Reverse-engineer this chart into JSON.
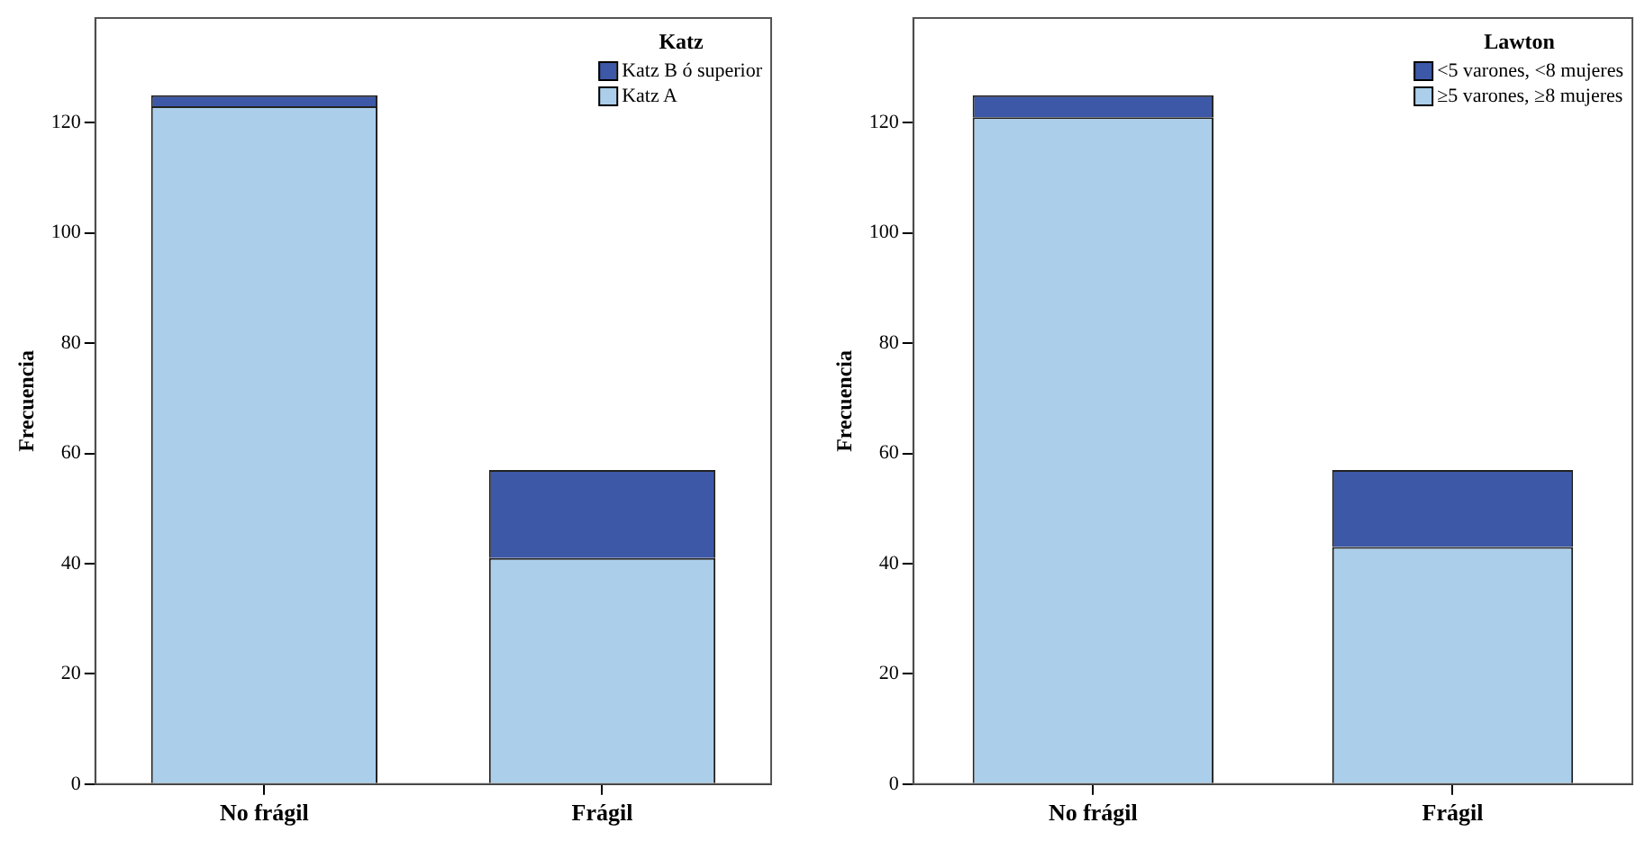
{
  "chart_data": [
    {
      "type": "bar",
      "stacked": true,
      "categories": [
        "No frágil",
        "Frágil"
      ],
      "ylabel": "Frecuencia",
      "legend_title": "Katz",
      "legend": "top right",
      "grid": false,
      "ylim": [
        0,
        139
      ],
      "yticks": [
        0,
        20,
        40,
        60,
        80,
        100,
        120
      ],
      "series": [
        {
          "name": "Katz A",
          "color": "#abcfeb",
          "values": [
            123,
            41
          ]
        },
        {
          "name": "Katz B ó superior",
          "color": "#3d58a7",
          "values": [
            2,
            16
          ]
        }
      ]
    },
    {
      "type": "bar",
      "stacked": true,
      "categories": [
        "No frágil",
        "Frágil"
      ],
      "ylabel": "Frecuencia",
      "legend_title": "Lawton",
      "legend": "top right",
      "grid": false,
      "ylim": [
        0,
        139
      ],
      "yticks": [
        0,
        20,
        40,
        60,
        80,
        100,
        120
      ],
      "series": [
        {
          "name": "≥5 varones, ≥8 mujeres",
          "color": "#abcfeb",
          "values": [
            121,
            43
          ]
        },
        {
          "name": "<5 varones, <8 mujeres",
          "color": "#3d58a7",
          "values": [
            4,
            14
          ]
        }
      ]
    }
  ]
}
